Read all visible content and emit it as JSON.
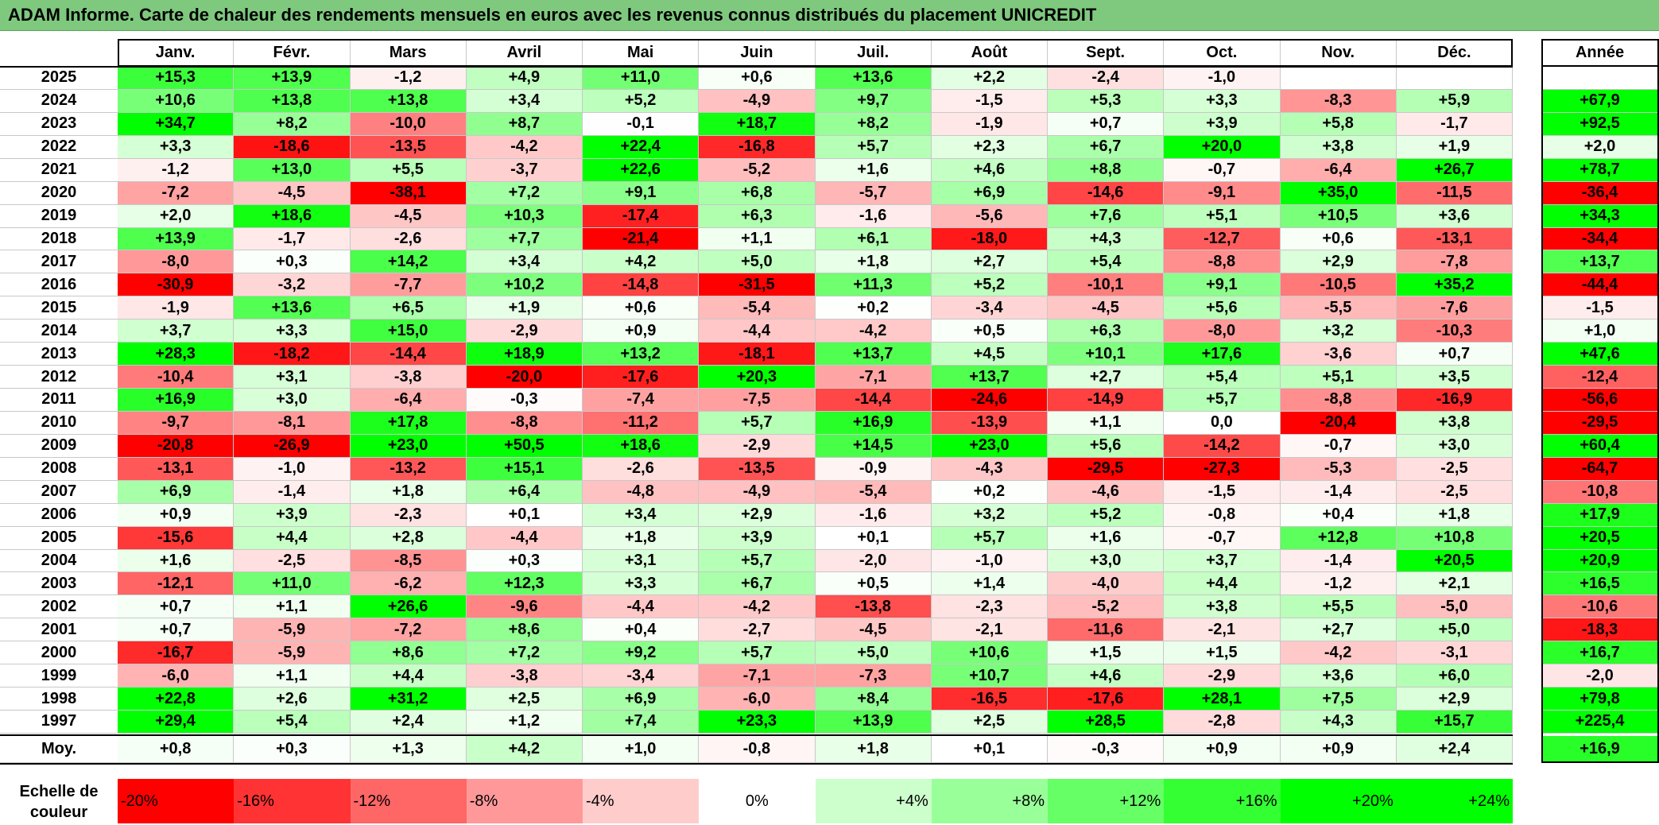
{
  "title": "ADAM Informe. Carte de chaleur des rendements mensuels en euros avec les revenus connus distribués du placement UNICREDIT",
  "chart_data": {
    "type": "heatmap",
    "title": "ADAM Informe. Carte de chaleur des rendements mensuels en euros avec les revenus connus distribués du placement UNICREDIT",
    "columns": [
      "Janv.",
      "Févr.",
      "Mars",
      "Avril",
      "Mai",
      "Juin",
      "Juil.",
      "Août",
      "Sept.",
      "Oct.",
      "Nov.",
      "Déc."
    ],
    "year_column": "Année",
    "rows": [
      {
        "year": "2025",
        "months": [
          "+15,3",
          "+13,9",
          "-1,2",
          "+4,9",
          "+11,0",
          "+0,6",
          "+13,6",
          "+2,2",
          "-2,4",
          "-1,0",
          "",
          ""
        ],
        "annual": ""
      },
      {
        "year": "2024",
        "months": [
          "+10,6",
          "+13,8",
          "+13,8",
          "+3,4",
          "+5,2",
          "-4,9",
          "+9,7",
          "-1,5",
          "+5,3",
          "+3,3",
          "-8,3",
          "+5,9"
        ],
        "annual": "+67,9"
      },
      {
        "year": "2023",
        "months": [
          "+34,7",
          "+8,2",
          "-10,0",
          "+8,7",
          "-0,1",
          "+18,7",
          "+8,2",
          "-1,9",
          "+0,7",
          "+3,9",
          "+5,8",
          "-1,7"
        ],
        "annual": "+92,5"
      },
      {
        "year": "2022",
        "months": [
          "+3,3",
          "-18,6",
          "-13,5",
          "-4,2",
          "+22,4",
          "-16,8",
          "+5,7",
          "+2,3",
          "+6,7",
          "+20,0",
          "+3,8",
          "+1,9"
        ],
        "annual": "+2,0"
      },
      {
        "year": "2021",
        "months": [
          "-1,2",
          "+13,0",
          "+5,5",
          "-3,7",
          "+22,6",
          "-5,2",
          "+1,6",
          "+4,6",
          "+8,8",
          "-0,7",
          "-6,4",
          "+26,7"
        ],
        "annual": "+78,7"
      },
      {
        "year": "2020",
        "months": [
          "-7,2",
          "-4,5",
          "-38,1",
          "+7,2",
          "+9,1",
          "+6,8",
          "-5,7",
          "+6,9",
          "-14,6",
          "-9,1",
          "+35,0",
          "-11,5"
        ],
        "annual": "-36,4"
      },
      {
        "year": "2019",
        "months": [
          "+2,0",
          "+18,6",
          "-4,5",
          "+10,3",
          "-17,4",
          "+6,3",
          "-1,6",
          "-5,6",
          "+7,6",
          "+5,1",
          "+10,5",
          "+3,6"
        ],
        "annual": "+34,3"
      },
      {
        "year": "2018",
        "months": [
          "+13,9",
          "-1,7",
          "-2,6",
          "+7,7",
          "-21,4",
          "+1,1",
          "+6,1",
          "-18,0",
          "+4,3",
          "-12,7",
          "+0,6",
          "-13,1"
        ],
        "annual": "-34,4"
      },
      {
        "year": "2017",
        "months": [
          "-8,0",
          "+0,3",
          "+14,2",
          "+3,4",
          "+4,2",
          "+5,0",
          "+1,8",
          "+2,7",
          "+5,4",
          "-8,8",
          "+2,9",
          "-7,8"
        ],
        "annual": "+13,7"
      },
      {
        "year": "2016",
        "months": [
          "-30,9",
          "-3,2",
          "-7,7",
          "+10,2",
          "-14,8",
          "-31,5",
          "+11,3",
          "+5,2",
          "-10,1",
          "+9,1",
          "-10,5",
          "+35,2"
        ],
        "annual": "-44,4"
      },
      {
        "year": "2015",
        "months": [
          "-1,9",
          "+13,6",
          "+6,5",
          "+1,9",
          "+0,6",
          "-5,4",
          "+0,2",
          "-3,4",
          "-4,5",
          "+5,6",
          "-5,5",
          "-7,6"
        ],
        "annual": "-1,5"
      },
      {
        "year": "2014",
        "months": [
          "+3,7",
          "+3,3",
          "+15,0",
          "-2,9",
          "+0,9",
          "-4,4",
          "-4,2",
          "+0,5",
          "+6,3",
          "-8,0",
          "+3,2",
          "-10,3"
        ],
        "annual": "+1,0"
      },
      {
        "year": "2013",
        "months": [
          "+28,3",
          "-18,2",
          "-14,4",
          "+18,9",
          "+13,2",
          "-18,1",
          "+13,7",
          "+4,5",
          "+10,1",
          "+17,6",
          "-3,6",
          "+0,7"
        ],
        "annual": "+47,6"
      },
      {
        "year": "2012",
        "months": [
          "-10,4",
          "+3,1",
          "-3,8",
          "-20,0",
          "-17,6",
          "+20,3",
          "-7,1",
          "+13,7",
          "+2,7",
          "+5,4",
          "+5,1",
          "+3,5"
        ],
        "annual": "-12,4"
      },
      {
        "year": "2011",
        "months": [
          "+16,9",
          "+3,0",
          "-6,4",
          "-0,3",
          "-7,4",
          "-7,5",
          "-14,4",
          "-24,6",
          "-14,9",
          "+5,7",
          "-8,8",
          "-16,9"
        ],
        "annual": "-56,6"
      },
      {
        "year": "2010",
        "months": [
          "-9,7",
          "-8,1",
          "+17,8",
          "-8,8",
          "-11,2",
          "+5,7",
          "+16,9",
          "-13,9",
          "+1,1",
          "0,0",
          "-20,4",
          "+3,8"
        ],
        "annual": "-29,5"
      },
      {
        "year": "2009",
        "months": [
          "-20,8",
          "-26,9",
          "+23,0",
          "+50,5",
          "+18,6",
          "-2,9",
          "+14,5",
          "+23,0",
          "+5,6",
          "-14,2",
          "-0,7",
          "+3,0"
        ],
        "annual": "+60,4"
      },
      {
        "year": "2008",
        "months": [
          "-13,1",
          "-1,0",
          "-13,2",
          "+15,1",
          "-2,6",
          "-13,5",
          "-0,9",
          "-4,3",
          "-29,5",
          "-27,3",
          "-5,3",
          "-2,5"
        ],
        "annual": "-64,7"
      },
      {
        "year": "2007",
        "months": [
          "+6,9",
          "-1,4",
          "+1,8",
          "+6,4",
          "-4,8",
          "-4,9",
          "-5,4",
          "+0,2",
          "-4,6",
          "-1,5",
          "-1,4",
          "-2,5"
        ],
        "annual": "-10,8"
      },
      {
        "year": "2006",
        "months": [
          "+0,9",
          "+3,9",
          "-2,3",
          "+0,1",
          "+3,4",
          "+2,9",
          "-1,6",
          "+3,2",
          "+5,2",
          "-0,8",
          "+0,4",
          "+1,8"
        ],
        "annual": "+17,9"
      },
      {
        "year": "2005",
        "months": [
          "-15,6",
          "+4,4",
          "+2,8",
          "-4,4",
          "+1,8",
          "+3,9",
          "+0,1",
          "+5,7",
          "+1,6",
          "-0,7",
          "+12,8",
          "+10,8"
        ],
        "annual": "+20,5"
      },
      {
        "year": "2004",
        "months": [
          "+1,6",
          "-2,5",
          "-8,5",
          "+0,3",
          "+3,1",
          "+5,7",
          "-2,0",
          "-1,0",
          "+3,0",
          "+3,7",
          "-1,4",
          "+20,5"
        ],
        "annual": "+20,9"
      },
      {
        "year": "2003",
        "months": [
          "-12,1",
          "+11,0",
          "-6,2",
          "+12,3",
          "+3,3",
          "+6,7",
          "+0,5",
          "+1,4",
          "-4,0",
          "+4,4",
          "-1,2",
          "+2,1"
        ],
        "annual": "+16,5"
      },
      {
        "year": "2002",
        "months": [
          "+0,7",
          "+1,1",
          "+26,6",
          "-9,6",
          "-4,4",
          "-4,2",
          "-13,8",
          "-2,3",
          "-5,2",
          "+3,8",
          "+5,5",
          "-5,0"
        ],
        "annual": "-10,6"
      },
      {
        "year": "2001",
        "months": [
          "+0,7",
          "-5,9",
          "-7,2",
          "+8,6",
          "+0,4",
          "-2,7",
          "-4,5",
          "-2,1",
          "-11,6",
          "-2,1",
          "+2,7",
          "+5,0"
        ],
        "annual": "-18,3"
      },
      {
        "year": "2000",
        "months": [
          "-16,7",
          "-5,9",
          "+8,6",
          "+7,2",
          "+9,2",
          "+5,7",
          "+5,0",
          "+10,6",
          "+1,5",
          "+1,5",
          "-4,2",
          "-3,1"
        ],
        "annual": "+16,7"
      },
      {
        "year": "1999",
        "months": [
          "-6,0",
          "+1,1",
          "+4,4",
          "-3,8",
          "-3,4",
          "-7,1",
          "-7,3",
          "+10,7",
          "+4,6",
          "-2,9",
          "+3,6",
          "+6,0"
        ],
        "annual": "-2,0"
      },
      {
        "year": "1998",
        "months": [
          "+22,8",
          "+2,6",
          "+31,2",
          "+2,5",
          "+6,9",
          "-6,0",
          "+8,4",
          "-16,5",
          "-17,6",
          "+28,1",
          "+7,5",
          "+2,9"
        ],
        "annual": "+79,8"
      },
      {
        "year": "1997",
        "months": [
          "+29,4",
          "+5,4",
          "+2,4",
          "+1,2",
          "+7,4",
          "+23,3",
          "+13,9",
          "+2,5",
          "+28,5",
          "-2,8",
          "+4,3",
          "+15,7"
        ],
        "annual": "+225,4"
      }
    ],
    "average_row": {
      "label": "Moy.",
      "months": [
        "+0,8",
        "+0,3",
        "+1,3",
        "+4,2",
        "+1,0",
        "-0,8",
        "+1,8",
        "+0,1",
        "-0,3",
        "+0,9",
        "+0,9",
        "+2,4"
      ],
      "annual": "+16,9"
    },
    "color_scale": {
      "label": "Echelle de couleur",
      "stops": [
        "-20%",
        "-16%",
        "-12%",
        "-8%",
        "-4%",
        "0%",
        "+4%",
        "+8%",
        "+12%",
        "+16%",
        "+20%",
        "+24%"
      ],
      "colors": [
        "#ff0000",
        "#ff3333",
        "#ff6666",
        "#ff9999",
        "#ffcccc",
        "#ffffff",
        "#ccffcc",
        "#99ff99",
        "#66ff66",
        "#33ff33",
        "#00ff00",
        "#00ff00"
      ]
    }
  }
}
